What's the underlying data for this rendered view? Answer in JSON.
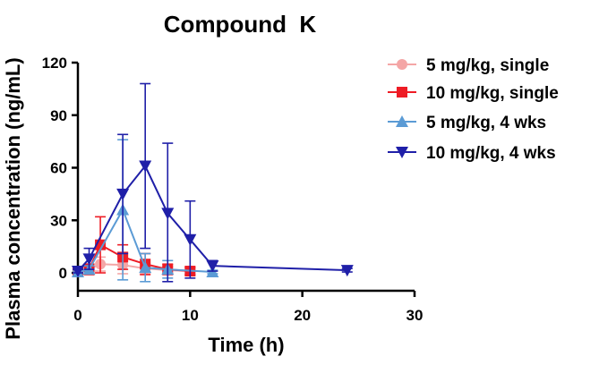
{
  "chart_data": {
    "type": "line",
    "title": "Compound  K",
    "xlabel": "Time (h)",
    "ylabel": "Plasma concentration (ng/mL)",
    "xlim": [
      0,
      30
    ],
    "ylim": [
      0,
      120
    ],
    "xticks": [
      "0",
      "10",
      "20",
      "30"
    ],
    "yticks": [
      "0",
      "30",
      "60",
      "90",
      "120"
    ],
    "grid": false,
    "legend_position": "right",
    "series": [
      {
        "name": "5 mg/kg, single",
        "color": "#f4a6a6",
        "marker": "circle",
        "x": [
          0,
          1,
          2,
          4,
          6,
          8,
          10
        ],
        "y": [
          0.5,
          2,
          5,
          4.5,
          2.5,
          1.5,
          1
        ],
        "err": [
          0.5,
          3,
          4,
          5,
          3,
          2,
          2
        ]
      },
      {
        "name": "10 mg/kg, single",
        "color": "#ee1c25",
        "marker": "square",
        "x": [
          0,
          1,
          2,
          4,
          6,
          8,
          10
        ],
        "y": [
          0.5,
          2,
          16,
          9,
          5,
          2,
          1
        ],
        "err": [
          0.5,
          3,
          16,
          7,
          6,
          3,
          2
        ]
      },
      {
        "name": "5 mg/kg, 4 wks",
        "color": "#5b9bd5",
        "marker": "triangle-up",
        "x": [
          0,
          1,
          4,
          6,
          8,
          12
        ],
        "y": [
          0.5,
          2,
          36,
          3,
          2,
          0.5
        ],
        "err": [
          0.5,
          2,
          40,
          8,
          5,
          1
        ]
      },
      {
        "name": "10 mg/kg, 4 wks",
        "color": "#1f1fa8",
        "marker": "triangle-down",
        "x": [
          0,
          1,
          4,
          6,
          8,
          10,
          12,
          24
        ],
        "y": [
          1,
          8,
          45,
          61,
          34,
          19,
          4,
          1.5
        ],
        "err": [
          1,
          6,
          34,
          47,
          40,
          22,
          3,
          1
        ]
      }
    ]
  }
}
